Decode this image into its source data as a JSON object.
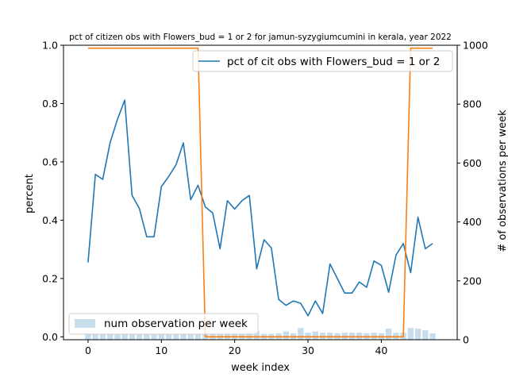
{
  "chart_data": {
    "type": "line",
    "title": "pct of citizen obs with Flowers_bud = 1 or 2 for jamun-syzygiumcumini in kerala, year 2022",
    "xlabel": "week index",
    "ylabel_left": "percent",
    "ylabel_right": "# of observations per week",
    "xlim": [
      -3.35,
      50.35
    ],
    "ylim_left": [
      -0.01,
      1.0
    ],
    "ylim_right": [
      0,
      1000
    ],
    "x_ticks": [
      0,
      10,
      20,
      30,
      40
    ],
    "y_ticks_left": [
      0.0,
      0.2,
      0.4,
      0.6,
      0.8,
      1.0
    ],
    "y_ticks_left_labels": [
      "0.0",
      "0.2",
      "0.4",
      "0.6",
      "0.8",
      "1.0"
    ],
    "y_ticks_right": [
      0,
      200,
      400,
      600,
      800,
      1000
    ],
    "grid": false,
    "weeks": [
      0,
      1,
      2,
      3,
      4,
      5,
      6,
      7,
      8,
      9,
      10,
      11,
      12,
      13,
      14,
      15,
      16,
      17,
      18,
      19,
      20,
      21,
      22,
      23,
      24,
      25,
      26,
      27,
      28,
      29,
      30,
      31,
      32,
      33,
      34,
      35,
      36,
      37,
      38,
      39,
      40,
      41,
      42,
      43,
      44,
      45,
      46,
      47
    ],
    "series": [
      {
        "name": "pct of cit obs with Flowers_bud = 1 or 2",
        "axis": "left",
        "kind": "line",
        "color": "#1f77b4",
        "values": [
          0.255,
          0.557,
          0.54,
          0.665,
          0.745,
          0.812,
          0.485,
          0.44,
          0.343,
          0.343,
          0.515,
          0.55,
          0.59,
          0.665,
          0.47,
          0.52,
          0.445,
          0.425,
          0.302,
          0.467,
          0.438,
          0.467,
          0.485,
          0.233,
          0.333,
          0.305,
          0.128,
          0.108,
          0.123,
          0.115,
          0.072,
          0.123,
          0.08,
          0.25,
          0.2,
          0.15,
          0.15,
          0.188,
          0.17,
          0.26,
          0.245,
          0.153,
          0.28,
          0.32,
          0.22,
          0.41,
          0.302,
          0.32
        ]
      },
      {
        "name": "",
        "axis": "left",
        "kind": "line",
        "color": "#ff7f0e",
        "values": [
          0.99,
          0.99,
          0.99,
          0.99,
          0.99,
          0.99,
          0.99,
          0.99,
          0.99,
          0.99,
          0.99,
          0.99,
          0.99,
          0.99,
          0.99,
          0.99,
          0.0,
          0.0,
          0.0,
          0.0,
          0.0,
          0.0,
          0.0,
          0.0,
          0.0,
          0.0,
          0.0,
          0.0,
          0.0,
          0.0,
          0.0,
          0.0,
          0.0,
          0.0,
          0.0,
          0.0,
          0.0,
          0.0,
          0.0,
          0.0,
          0.0,
          0.0,
          0.0,
          0.0,
          0.99,
          0.99,
          0.99,
          0.99
        ]
      },
      {
        "name": "num observation per week",
        "axis": "right",
        "kind": "bar",
        "color": "#1f77b4",
        "opacity": 0.25,
        "values": [
          22,
          20,
          20,
          20,
          20,
          20,
          18,
          18,
          18,
          18,
          18,
          18,
          18,
          18,
          18,
          18,
          20,
          20,
          20,
          22,
          22,
          22,
          24,
          28,
          20,
          20,
          22,
          28,
          22,
          40,
          24,
          28,
          24,
          24,
          22,
          24,
          24,
          24,
          22,
          24,
          22,
          38,
          24,
          24,
          40,
          38,
          32,
          22
        ]
      }
    ],
    "legend_upper": {
      "placement": "top-right",
      "entries": [
        "pct of cit obs with Flowers_bud = 1 or 2"
      ]
    },
    "legend_lower": {
      "placement": "bottom-left",
      "entries": [
        "num observation per week"
      ]
    }
  }
}
